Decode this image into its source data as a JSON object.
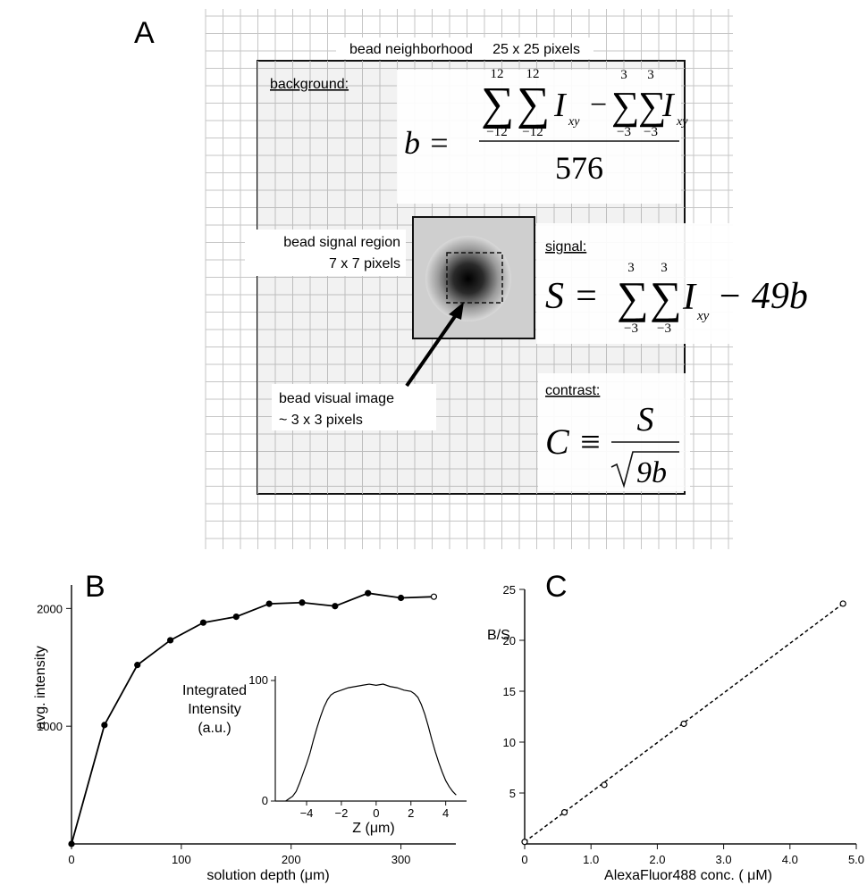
{
  "panel_a": {
    "letter": "A",
    "neighborhood_label": "bead neighborhood     25 x 25 pixels",
    "background_heading": "background:",
    "signal_heading": "signal:",
    "contrast_heading": "contrast:",
    "signal_region_label_1": "bead signal region",
    "signal_region_label_2": "7 x 7 pixels",
    "visual_image_label_1": "bead visual image",
    "visual_image_label_2": "~ 3 x 3 pixels",
    "eq_b": {
      "lhs": "b =",
      "sum_upper_outer": "12",
      "sum_lower_outer": "−12",
      "sum_upper_inner": "3",
      "sum_lower_inner": "−3",
      "term": "I",
      "subscript": "xy",
      "minus": "−",
      "denominator": "576"
    },
    "eq_s": {
      "lhs": "S =",
      "sum_upper": "3",
      "sum_lower": "−3",
      "term": "I",
      "subscript": "xy",
      "tail": "− 49b"
    },
    "eq_c": {
      "lhs": "C ≡",
      "numerator": "S",
      "denominator": "9b"
    }
  },
  "panel_b": {
    "letter": "B",
    "ylabel": "avg. intensity",
    "xlabel": "solution depth (μm)",
    "inset_label_1": "Integrated",
    "inset_label_2": "Intensity",
    "inset_label_3": "(a.u.)",
    "inset_xlabel": "Z (μm)"
  },
  "panel_c": {
    "letter": "C",
    "ylabel": "B/S",
    "xlabel": "AlexaFluor488 conc.  ( μM)"
  },
  "chart_data": [
    {
      "type": "line",
      "xlabel": "solution depth (μm)",
      "ylabel": "avg. intensity",
      "xlim": [
        0,
        350
      ],
      "ylim": [
        0,
        2200
      ],
      "xticks": [
        "0",
        "100",
        "200",
        "300"
      ],
      "yticks": [
        "1000",
        "2000"
      ],
      "x": [
        0,
        30,
        60,
        90,
        120,
        150,
        180,
        210,
        240,
        270,
        300,
        330
      ],
      "y": [
        0,
        1010,
        1520,
        1730,
        1880,
        1930,
        2040,
        2050,
        2020,
        2130,
        2090,
        2100
      ]
    },
    {
      "type": "line",
      "xlabel": "Z (μm)",
      "ylabel": "Integrated Intensity (a.u.)",
      "xlim": [
        -5.8,
        5.2
      ],
      "ylim": [
        0,
        100
      ],
      "xticks": [
        "-4",
        "-2",
        "0",
        "2",
        "4"
      ],
      "yticks": [
        "0",
        "100"
      ],
      "x": [
        -5.2,
        -5.0,
        -4.8,
        -4.6,
        -4.4,
        -4.2,
        -4.0,
        -3.8,
        -3.6,
        -3.4,
        -3.2,
        -3.0,
        -2.8,
        -2.6,
        -2.4,
        -2.2,
        -2.0,
        -1.6,
        -1.2,
        -0.8,
        -0.4,
        0.0,
        0.4,
        0.8,
        1.2,
        1.6,
        2.0,
        2.2,
        2.4,
        2.6,
        2.8,
        3.0,
        3.2,
        3.4,
        3.6,
        3.8,
        4.0,
        4.2,
        4.4,
        4.6
      ],
      "y": [
        0,
        2,
        4,
        8,
        15,
        23,
        31,
        40,
        51,
        61,
        70,
        78,
        84,
        88,
        90,
        91,
        92,
        94,
        95,
        96,
        97,
        96,
        97,
        95,
        94,
        92,
        91,
        89,
        86,
        80,
        72,
        62,
        51,
        41,
        32,
        24,
        17,
        12,
        8,
        5
      ]
    },
    {
      "type": "scatter",
      "xlabel": "AlexaFluor488 conc.  ( μM)",
      "ylabel": "B/S",
      "xlim": [
        0,
        5.0
      ],
      "ylim": [
        0,
        25
      ],
      "xticks": [
        "0",
        "1.0",
        "2.0",
        "3.0",
        "4.0",
        "5.0"
      ],
      "yticks": [
        "5",
        "10",
        "15",
        "20",
        "25"
      ],
      "x": [
        0,
        0.6,
        1.2,
        2.4,
        4.8
      ],
      "y": [
        0.2,
        3.1,
        5.8,
        11.8,
        23.6
      ],
      "fit_line": "dashed"
    }
  ]
}
